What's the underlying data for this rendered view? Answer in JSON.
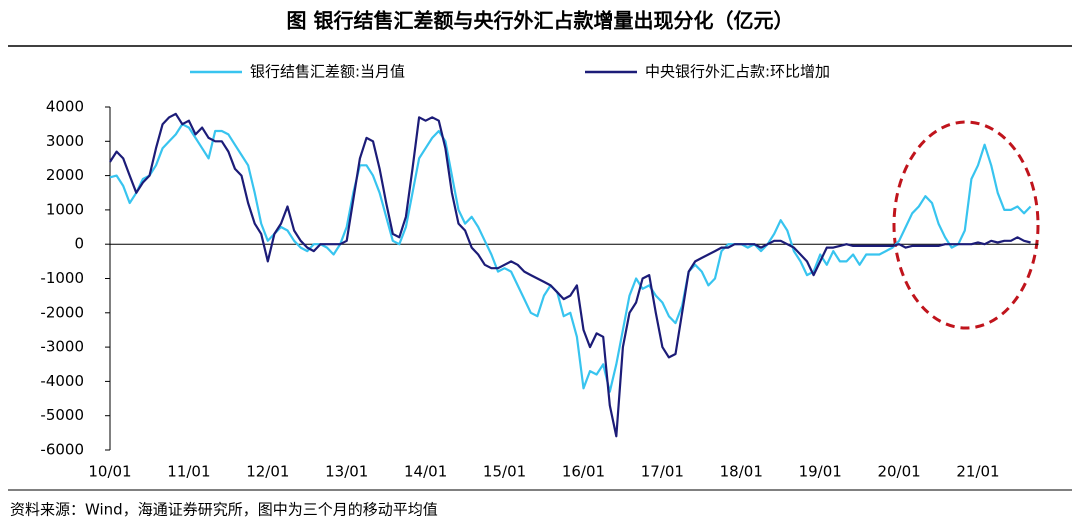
{
  "chart_data": {
    "type": "line",
    "title": "图  银行结售汇差额与央行外汇占款增量出现分化（亿元）",
    "source": "资料来源：Wind，海通证券研究所，图中为三个月的移动平均值",
    "categories": [
      "10/01",
      null,
      null,
      null,
      null,
      null,
      null,
      null,
      null,
      null,
      null,
      null,
      "11/01",
      null,
      null,
      null,
      null,
      null,
      null,
      null,
      null,
      null,
      null,
      null,
      "12/01",
      null,
      null,
      null,
      null,
      null,
      null,
      null,
      null,
      null,
      null,
      null,
      "13/01",
      null,
      null,
      null,
      null,
      null,
      null,
      null,
      null,
      null,
      null,
      null,
      "14/01",
      null,
      null,
      null,
      null,
      null,
      null,
      null,
      null,
      null,
      null,
      null,
      "15/01",
      null,
      null,
      null,
      null,
      null,
      null,
      null,
      null,
      null,
      null,
      null,
      "16/01",
      null,
      null,
      null,
      null,
      null,
      null,
      null,
      null,
      null,
      null,
      null,
      "17/01",
      null,
      null,
      null,
      null,
      null,
      null,
      null,
      null,
      null,
      null,
      null,
      "18/01",
      null,
      null,
      null,
      null,
      null,
      null,
      null,
      null,
      null,
      null,
      null,
      "19/01",
      null,
      null,
      null,
      null,
      null,
      null,
      null,
      null,
      null,
      null,
      null,
      "20/01",
      null,
      null,
      null,
      null,
      null,
      null,
      null,
      null,
      null,
      null,
      null,
      "21/01",
      null,
      null,
      null,
      null,
      null,
      null,
      null,
      null
    ],
    "series": [
      {
        "name": "银行结售汇差额:当月值",
        "color": "#38c4ef",
        "values": [
          1950,
          2000,
          1700,
          1200,
          1500,
          1900,
          2000,
          2300,
          2800,
          3000,
          3200,
          3500,
          3400,
          3100,
          2800,
          2500,
          3300,
          3300,
          3200,
          2900,
          2600,
          2300,
          1500,
          600,
          100,
          300,
          500,
          400,
          100,
          -100,
          -200,
          0,
          0,
          -100,
          -300,
          0,
          500,
          1500,
          2300,
          2300,
          2000,
          1500,
          800,
          100,
          0,
          500,
          1500,
          2500,
          2800,
          3100,
          3300,
          3000,
          2000,
          1000,
          600,
          800,
          500,
          100,
          -300,
          -800,
          -700,
          -800,
          -1200,
          -1600,
          -2000,
          -2100,
          -1500,
          -1200,
          -1400,
          -2100,
          -2000,
          -2700,
          -4200,
          -3700,
          -3800,
          -3500,
          -4300,
          -3500,
          -2500,
          -1500,
          -1000,
          -1300,
          -1200,
          -1500,
          -1700,
          -2100,
          -2300,
          -1800,
          -800,
          -600,
          -800,
          -1200,
          -1000,
          -200,
          0,
          0,
          0,
          -100,
          0,
          -200,
          0,
          300,
          700,
          400,
          -200,
          -500,
          -900,
          -800,
          -300,
          -600,
          -200,
          -500,
          -500,
          -300,
          -600,
          -300,
          -300,
          -300,
          -200,
          -100,
          100,
          500,
          900,
          1100,
          1400,
          1200,
          600,
          200,
          -100,
          0,
          400,
          1900,
          2300,
          2900,
          2300,
          1500,
          1000,
          1000,
          1100,
          900,
          1100
        ]
      },
      {
        "name": "中央银行外汇占款:环比增加",
        "color": "#1c1c78",
        "values": [
          2400,
          2700,
          2500,
          2000,
          1500,
          1800,
          2000,
          2800,
          3500,
          3700,
          3800,
          3500,
          3600,
          3200,
          3400,
          3100,
          3000,
          3000,
          2700,
          2200,
          2000,
          1200,
          600,
          300,
          -500,
          300,
          600,
          1100,
          400,
          100,
          -100,
          -200,
          0,
          0,
          0,
          0,
          100,
          1300,
          2500,
          3100,
          3000,
          2200,
          1200,
          300,
          200,
          800,
          2200,
          3700,
          3600,
          3700,
          3600,
          2800,
          1500,
          600,
          400,
          -100,
          -300,
          -600,
          -700,
          -700,
          -600,
          -500,
          -600,
          -800,
          -900,
          -1000,
          -1100,
          -1200,
          -1400,
          -1600,
          -1500,
          -1200,
          -2500,
          -3000,
          -2600,
          -2700,
          -4700,
          -5600,
          -3000,
          -2000,
          -1700,
          -1000,
          -900,
          -2000,
          -3000,
          -3300,
          -3200,
          -2000,
          -800,
          -500,
          -400,
          -300,
          -200,
          -100,
          -100,
          0,
          0,
          0,
          0,
          -100,
          0,
          100,
          100,
          0,
          -100,
          -300,
          -500,
          -900,
          -500,
          -100,
          -100,
          -50,
          0,
          -50,
          -50,
          -50,
          -50,
          -50,
          -50,
          -50,
          0,
          -100,
          -50,
          -50,
          -50,
          -50,
          -50,
          0,
          0,
          0,
          0,
          0,
          50,
          0,
          100,
          50,
          100,
          100,
          200,
          100,
          50
        ]
      }
    ],
    "ylim": [
      -6000,
      4000
    ],
    "yticks": [
      -6000,
      -5000,
      -4000,
      -3000,
      -2000,
      -1000,
      0,
      1000,
      2000,
      3000,
      4000
    ],
    "grid": false
  }
}
